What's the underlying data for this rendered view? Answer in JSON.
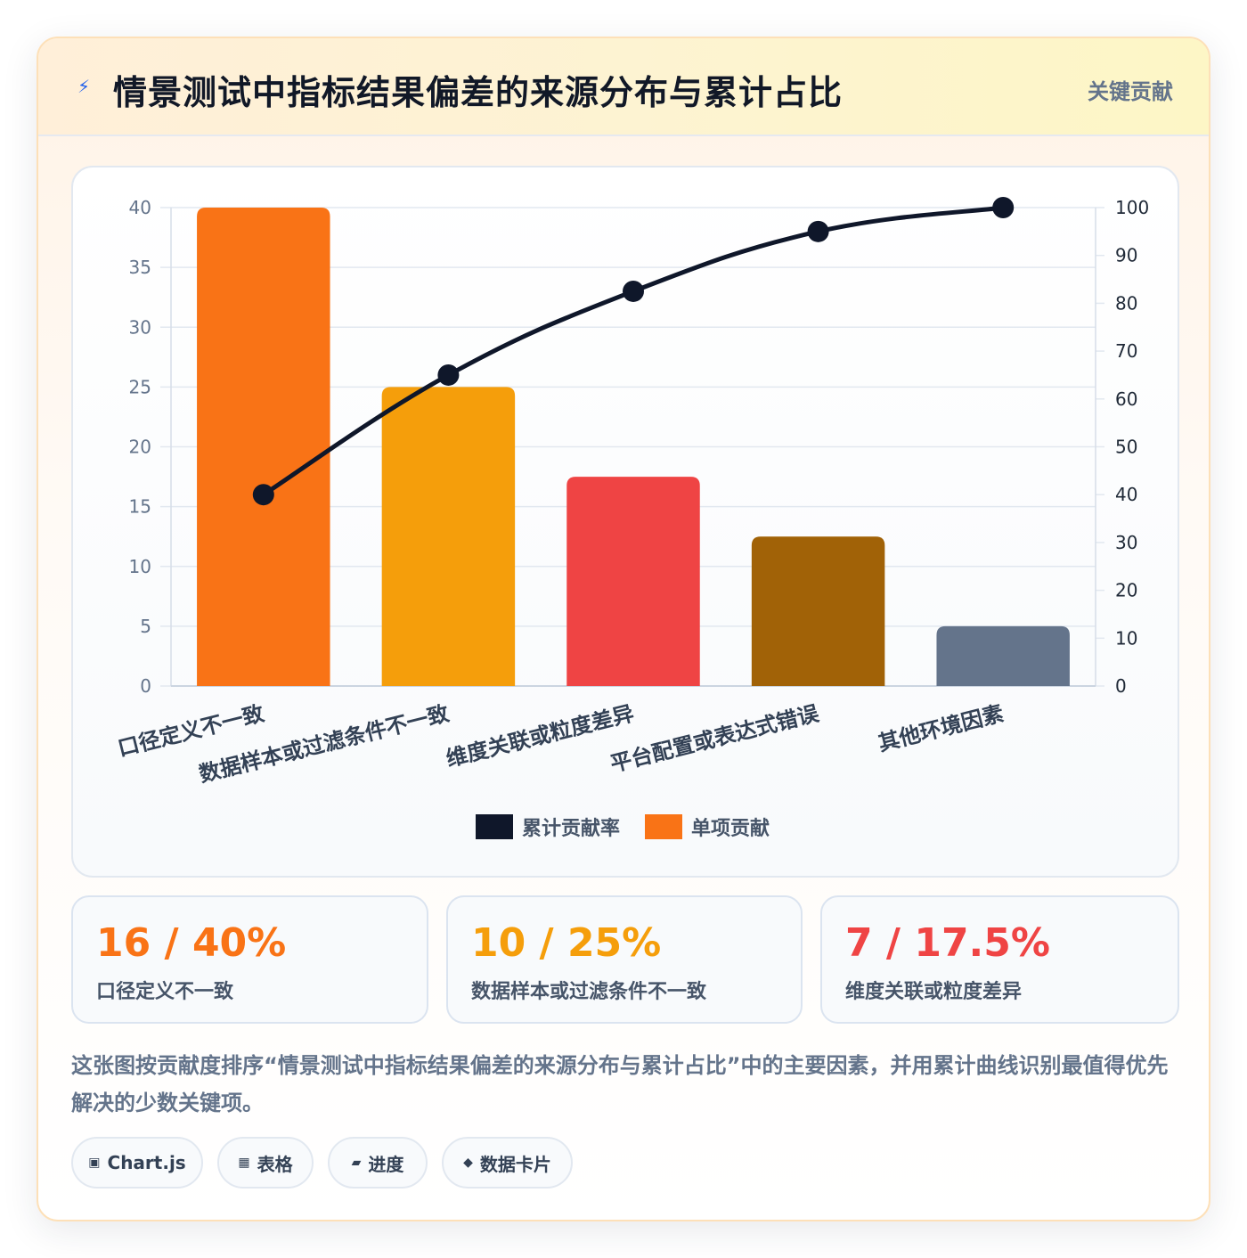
{
  "header": {
    "icon": "lightning-icon",
    "title": "情景测试中指标结果偏差的来源分布与累计占比",
    "badge": "关键贡献"
  },
  "chart_data": {
    "type": "bar",
    "categories": [
      "口径定义不一致",
      "数据样本或过滤条件不一致",
      "维度关联或粒度差异",
      "平台配置或表达式错误",
      "其他环境因素"
    ],
    "series": [
      {
        "name": "单项贡献",
        "type": "bar",
        "axis": "left",
        "values": [
          40,
          25,
          17.5,
          12.5,
          5
        ]
      },
      {
        "name": "累计贡献率",
        "type": "line",
        "axis": "right",
        "values": [
          40,
          65,
          82.5,
          95,
          100
        ]
      }
    ],
    "bar_colors": [
      "#f97316",
      "#f59e0b",
      "#ef4444",
      "#a16207",
      "#64748b"
    ],
    "line_color": "#0f172a",
    "ylim_left": [
      0,
      40
    ],
    "yticks_left": [
      0,
      5,
      10,
      15,
      20,
      25,
      30,
      35,
      40
    ],
    "ylim_right": [
      0,
      100
    ],
    "yticks_right": [
      0,
      10,
      20,
      30,
      40,
      50,
      60,
      70,
      80,
      90,
      100
    ],
    "grid": true,
    "legend": "bottom",
    "legend_items": [
      {
        "label": "累计贡献率",
        "color": "#0f172a"
      },
      {
        "label": "单项贡献",
        "color": "#f97316"
      }
    ]
  },
  "stats": [
    {
      "value": "16 / 40%",
      "label": "口径定义不一致",
      "color": "#f97316"
    },
    {
      "value": "10 / 25%",
      "label": "数据样本或过滤条件不一致",
      "color": "#f59e0b"
    },
    {
      "value": "7 / 17.5%",
      "label": "维度关联或粒度差异",
      "color": "#ef4444"
    }
  ],
  "description": "这张图按贡献度排序“情景测试中指标结果偏差的来源分布与累计占比”中的主要因素，并用累计曲线识别最值得优先解决的少数关键项。",
  "tags": [
    {
      "icon": "▣",
      "label": "Chart.js"
    },
    {
      "icon": "▦",
      "label": "表格"
    },
    {
      "icon": "▰",
      "label": "进度"
    },
    {
      "icon": "◆",
      "label": "数据卡片"
    }
  ]
}
